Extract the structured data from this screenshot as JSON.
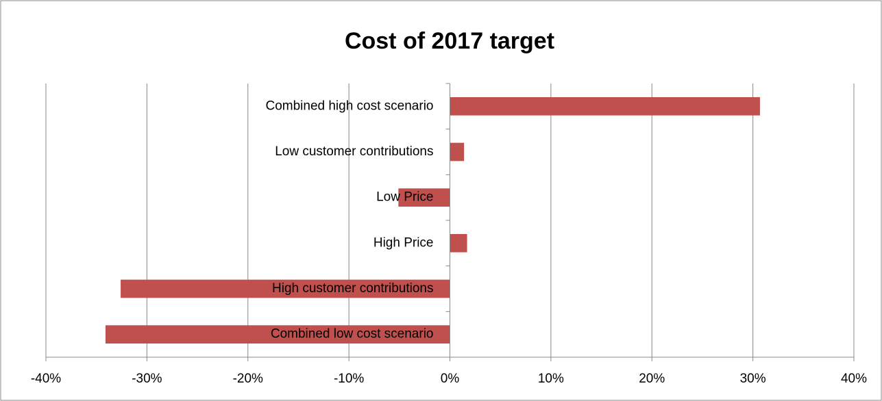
{
  "chart_data": {
    "type": "bar",
    "orientation": "horizontal",
    "title": "Cost of 2017 target",
    "categories": [
      "Combined high cost scenario",
      "Low customer contributions",
      "Low Price",
      "High Price",
      "High customer contributions",
      "Combined low cost scenario"
    ],
    "values": [
      30.7,
      1.4,
      -5.1,
      1.7,
      -32.6,
      -34.1
    ],
    "color": "#c0504d",
    "xlim": [
      -40,
      40
    ],
    "xticks": [
      {
        "value": -40,
        "label": "-40%"
      },
      {
        "value": -30,
        "label": "-30%"
      },
      {
        "value": -20,
        "label": "-20%"
      },
      {
        "value": -10,
        "label": "-10%"
      },
      {
        "value": 0,
        "label": "0%"
      },
      {
        "value": 10,
        "label": "10%"
      },
      {
        "value": 20,
        "label": "20%"
      },
      {
        "value": 30,
        "label": "30%"
      },
      {
        "value": 40,
        "label": "40%"
      }
    ],
    "grid": true
  }
}
